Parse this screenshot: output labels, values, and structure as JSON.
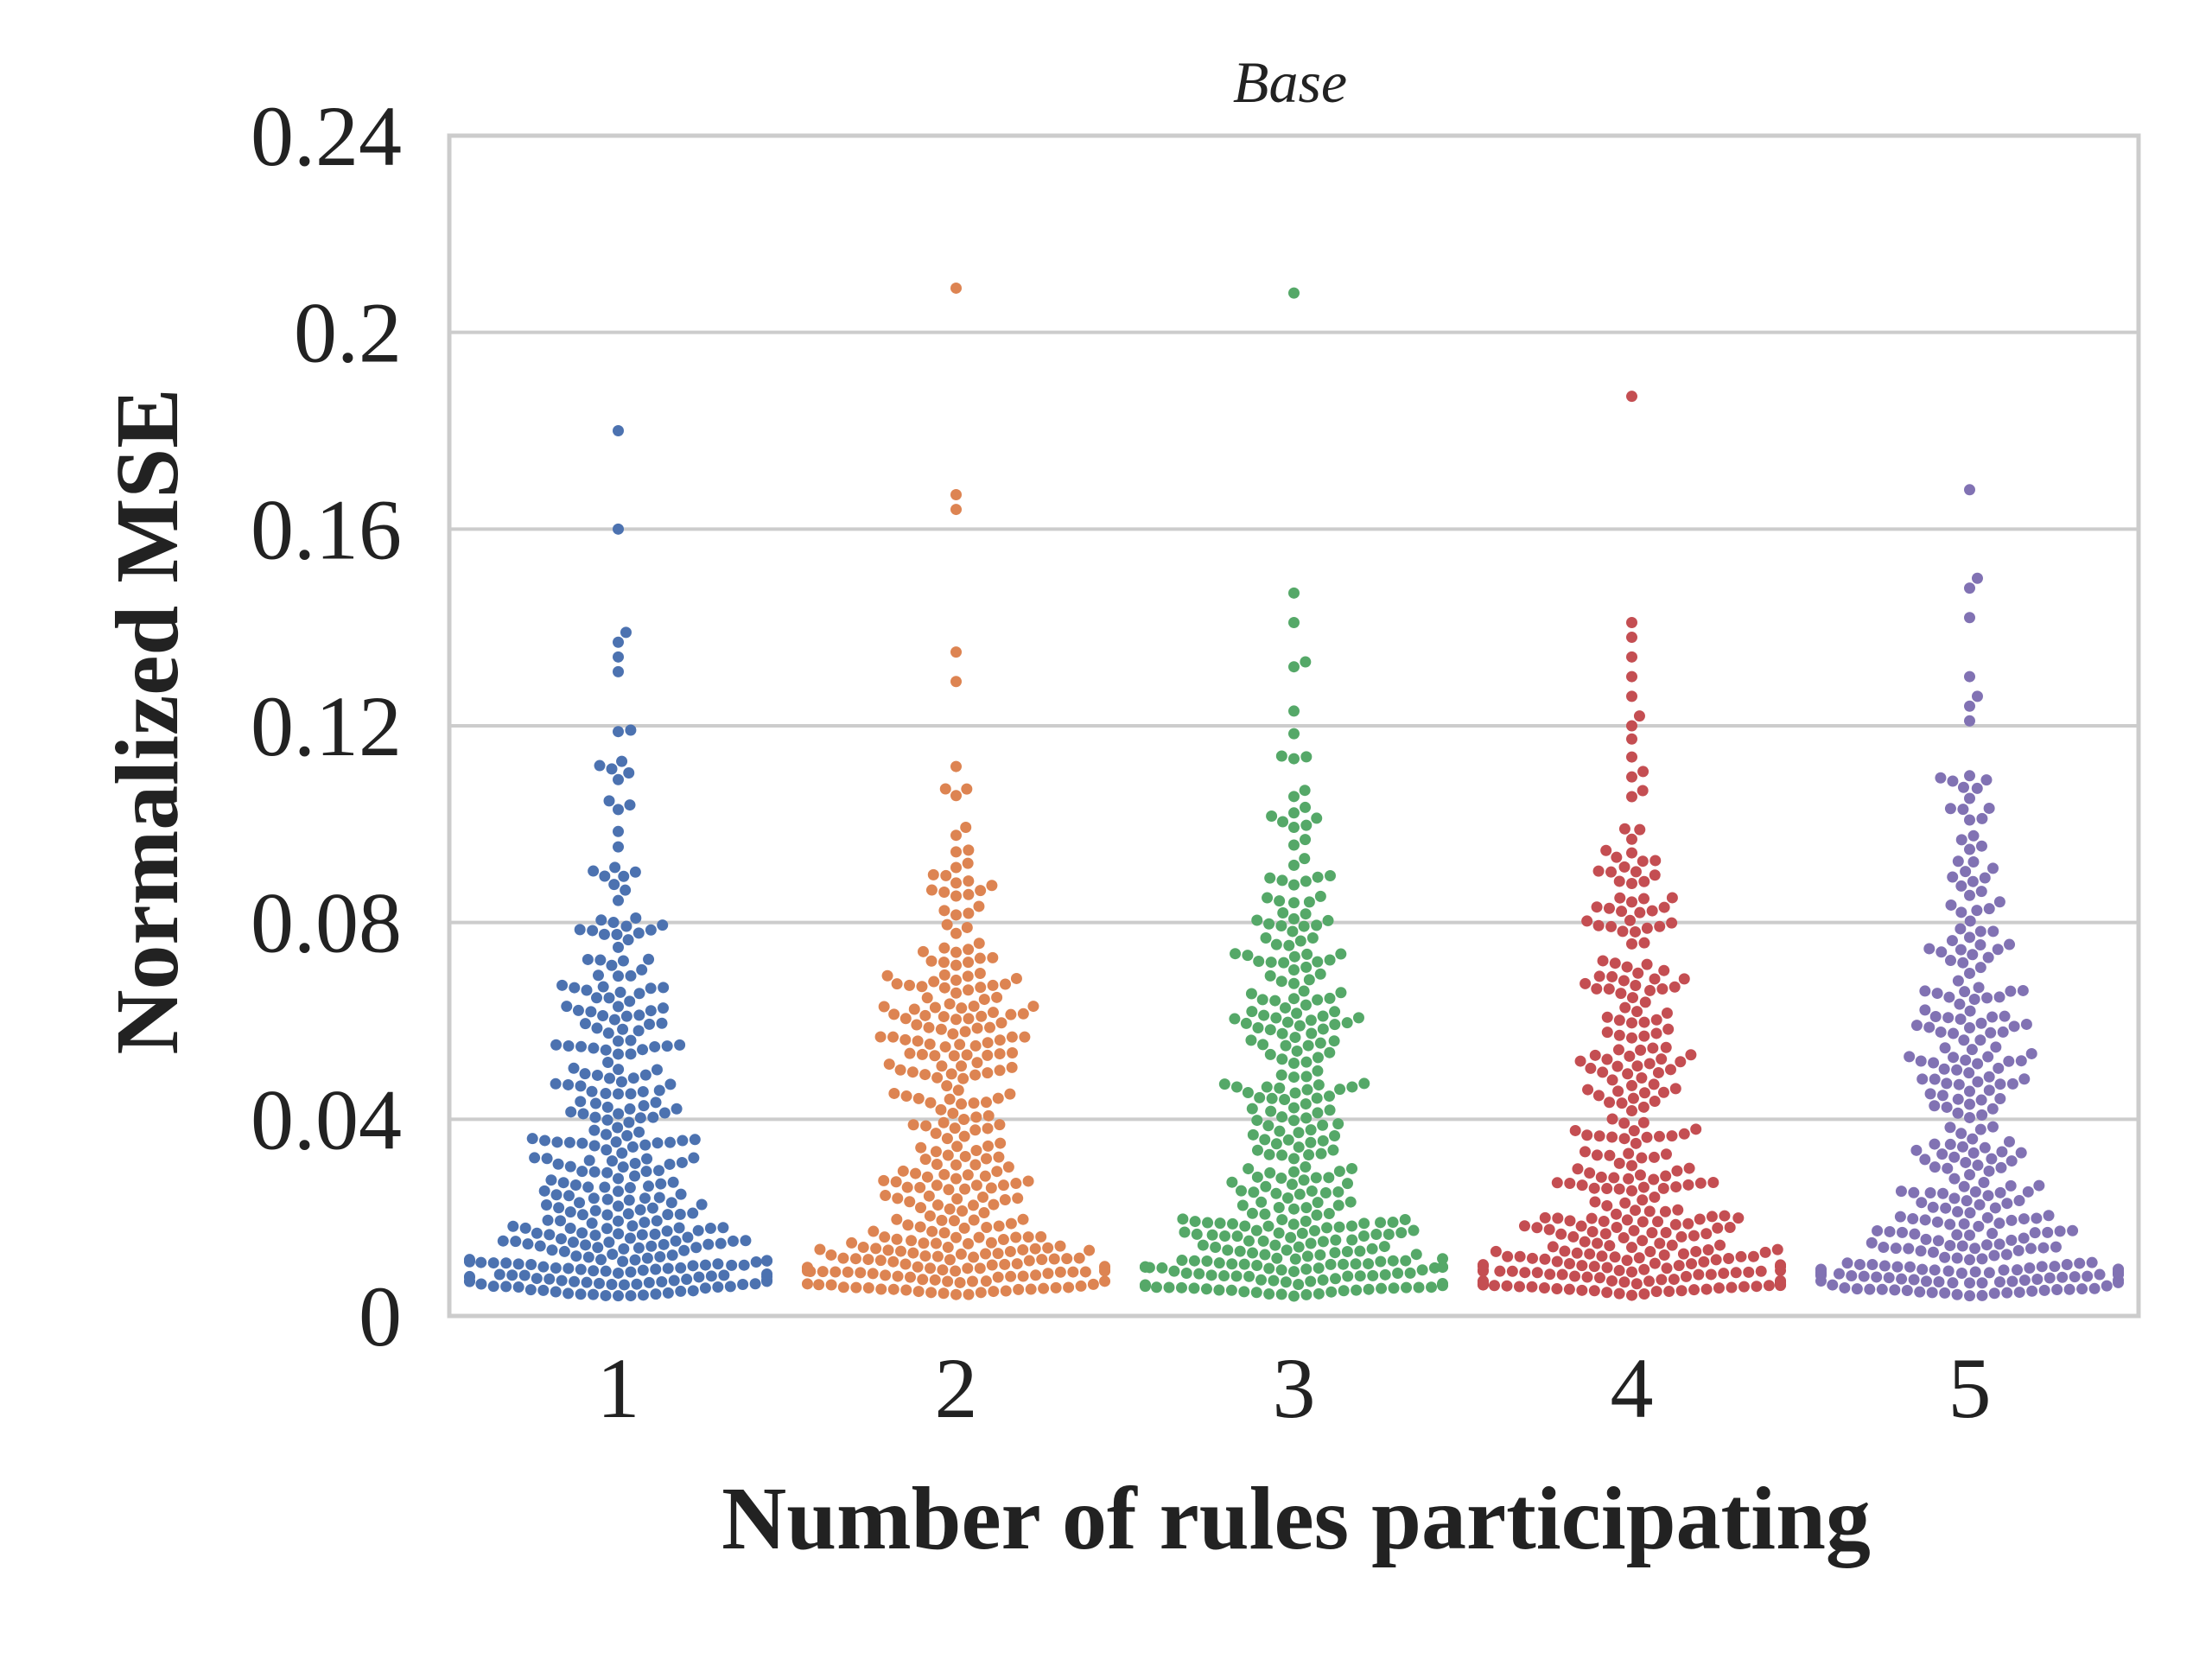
{
  "chart_data": {
    "type": "swarm",
    "title": "Base",
    "xlabel": "Number of rules participating",
    "ylabel": "Normalized MSE",
    "categories": [
      "1",
      "2",
      "3",
      "4",
      "5"
    ],
    "ylim": [
      0,
      0.24
    ],
    "yticks": [
      0,
      0.04,
      0.08,
      0.12,
      0.16,
      0.2,
      0.24
    ],
    "ytick_labels": [
      "0",
      "0.04",
      "0.08",
      "0.12",
      "0.16",
      "0.2",
      "0.24"
    ],
    "grid": "horizontal",
    "legend": "none",
    "series": [
      {
        "category": "1",
        "color": "#4c72b0",
        "marker_count_approx": 330,
        "distribution": [
          [
            0.0,
            0.01,
            62
          ],
          [
            0.01,
            0.02,
            72
          ],
          [
            0.02,
            0.03,
            42
          ],
          [
            0.03,
            0.04,
            34
          ],
          [
            0.04,
            0.05,
            30
          ],
          [
            0.05,
            0.06,
            24
          ],
          [
            0.06,
            0.07,
            24
          ],
          [
            0.07,
            0.08,
            16
          ],
          [
            0.08,
            0.09,
            8
          ],
          [
            0.09,
            0.1,
            5
          ],
          [
            0.1,
            0.11,
            4
          ],
          [
            0.11,
            0.12,
            6
          ]
        ],
        "outliers": [
          0.131,
          0.134,
          0.137,
          0.139,
          0.16,
          0.18
        ]
      },
      {
        "category": "2",
        "color": "#dd8452",
        "marker_count_approx": 330,
        "distribution": [
          [
            0.0,
            0.01,
            60
          ],
          [
            0.01,
            0.02,
            64
          ],
          [
            0.02,
            0.03,
            36
          ],
          [
            0.03,
            0.04,
            26
          ],
          [
            0.04,
            0.05,
            24
          ],
          [
            0.05,
            0.06,
            34
          ],
          [
            0.06,
            0.07,
            36
          ],
          [
            0.07,
            0.08,
            14
          ],
          [
            0.08,
            0.09,
            14
          ],
          [
            0.09,
            0.1,
            6
          ],
          [
            0.1,
            0.11,
            3
          ],
          [
            0.11,
            0.12,
            1
          ]
        ],
        "outliers": [
          0.129,
          0.135,
          0.164,
          0.167,
          0.209
        ]
      },
      {
        "category": "3",
        "color": "#55a868",
        "marker_count_approx": 330,
        "distribution": [
          [
            0.0,
            0.01,
            64
          ],
          [
            0.01,
            0.02,
            72
          ],
          [
            0.02,
            0.03,
            34
          ],
          [
            0.03,
            0.04,
            24
          ],
          [
            0.04,
            0.05,
            28
          ],
          [
            0.05,
            0.06,
            24
          ],
          [
            0.06,
            0.07,
            24
          ],
          [
            0.07,
            0.08,
            22
          ],
          [
            0.08,
            0.09,
            16
          ],
          [
            0.09,
            0.1,
            6
          ],
          [
            0.1,
            0.11,
            7
          ],
          [
            0.11,
            0.12,
            4
          ]
        ],
        "outliers": [
          0.123,
          0.132,
          0.133,
          0.141,
          0.147,
          0.208
        ]
      },
      {
        "category": "4",
        "color": "#c44e52",
        "marker_count_approx": 330,
        "distribution": [
          [
            0.0,
            0.01,
            72
          ],
          [
            0.01,
            0.02,
            76
          ],
          [
            0.02,
            0.03,
            34
          ],
          [
            0.03,
            0.04,
            24
          ],
          [
            0.04,
            0.05,
            20
          ],
          [
            0.05,
            0.06,
            24
          ],
          [
            0.06,
            0.07,
            22
          ],
          [
            0.07,
            0.08,
            14
          ],
          [
            0.08,
            0.09,
            16
          ],
          [
            0.09,
            0.1,
            12
          ],
          [
            0.1,
            0.11,
            3
          ],
          [
            0.11,
            0.12,
            4
          ]
        ],
        "outliers": [
          0.122,
          0.126,
          0.13,
          0.134,
          0.138,
          0.141,
          0.187
        ]
      },
      {
        "category": "5",
        "color": "#8172b3",
        "marker_count_approx": 330,
        "distribution": [
          [
            0.0,
            0.01,
            70
          ],
          [
            0.01,
            0.02,
            56
          ],
          [
            0.02,
            0.03,
            28
          ],
          [
            0.03,
            0.04,
            24
          ],
          [
            0.04,
            0.05,
            24
          ],
          [
            0.05,
            0.06,
            28
          ],
          [
            0.06,
            0.07,
            20
          ],
          [
            0.07,
            0.08,
            16
          ],
          [
            0.08,
            0.09,
            12
          ],
          [
            0.09,
            0.1,
            8
          ],
          [
            0.1,
            0.11,
            12
          ],
          [
            0.11,
            0.12,
            0
          ]
        ],
        "outliers": [
          0.121,
          0.124,
          0.126,
          0.13,
          0.142,
          0.148,
          0.15,
          0.168
        ]
      }
    ]
  }
}
